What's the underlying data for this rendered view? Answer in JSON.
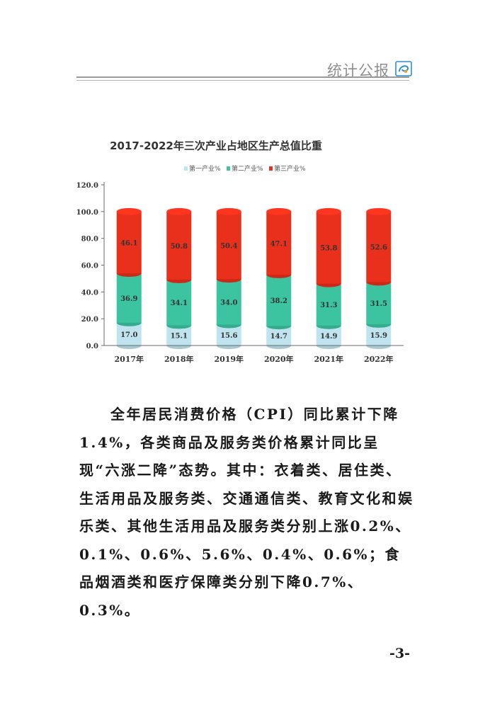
{
  "header": {
    "title": "统计公报"
  },
  "chart_data": {
    "type": "bar",
    "stacked": true,
    "title": "2017-2022年三次产业占地区生产总值比重",
    "legend_position": "top",
    "categories": [
      "2017年",
      "2018年",
      "2019年",
      "2020年",
      "2021年",
      "2022年"
    ],
    "series": [
      {
        "name": "第一产业%",
        "color": "#bfe4ef",
        "values": [
          17.0,
          15.1,
          15.6,
          14.7,
          14.9,
          15.9
        ]
      },
      {
        "name": "第二产业%",
        "color": "#3cc3a0",
        "values": [
          36.9,
          34.1,
          34.0,
          38.2,
          31.3,
          31.5
        ]
      },
      {
        "name": "第三产业%",
        "color": "#e8301c",
        "values": [
          46.1,
          50.8,
          50.4,
          47.1,
          53.8,
          52.6
        ]
      }
    ],
    "ylim": [
      0,
      120
    ],
    "yticks": [
      "0.0",
      "20.0",
      "40.0",
      "60.0",
      "80.0",
      "100.0",
      "120.0"
    ],
    "grid": false
  },
  "body": {
    "paragraph": "全年居民消费价格（CPI）同比累计下降1.4%，各类商品及服务类价格累计同比呈现“六涨二降”态势。其中：衣着类、居住类、生活用品及服务类、交通通信类、教育文化和娱乐类、其他生活用品及服务类分别上涨0.2%、0.1%、0.6%、5.6%、0.4%、0.6%；食品烟酒类和医疗保障类分别下降0.7%、0.3%。"
  },
  "footer": {
    "page_number": "-3-"
  }
}
